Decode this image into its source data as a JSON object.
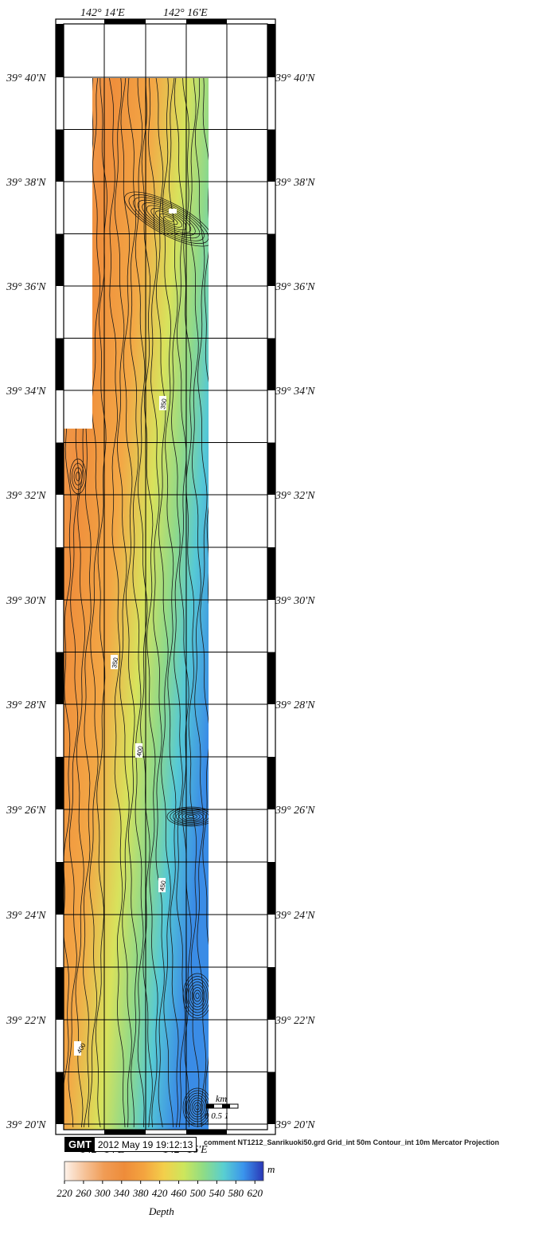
{
  "map": {
    "top_lon_labels": [
      "142° 14'E",
      "142° 16'E"
    ],
    "bottom_lon_labels": [
      "142° 14'E",
      "142° 16'E"
    ],
    "lat_labels": [
      "39° 40'N",
      "39° 38'N",
      "39° 36'N",
      "39° 34'N",
      "39° 32'N",
      "39° 30'N",
      "39° 28'N",
      "39° 26'N",
      "39° 24'N",
      "39° 22'N",
      "39° 20'N"
    ],
    "contour_labels": [
      "350",
      "350",
      "400",
      "450",
      "400"
    ]
  },
  "scale_bar": {
    "unit": "km",
    "ticks": "0 0.5 1"
  },
  "stamp": {
    "logo": "GMT",
    "date": "2012 May 19 19:12:13",
    "comment": "comment NT1212_Sanrikuoki50.grd Grid_int 50m Contour_int 10m  Mercator Projection"
  },
  "colorbar": {
    "unit": "m",
    "label": "Depth",
    "ticks": [
      "220",
      "260",
      "300",
      "340",
      "380",
      "420",
      "460",
      "500",
      "540",
      "580",
      "620"
    ],
    "colors": [
      "#fbe9dd",
      "#f7c49a",
      "#f19a4f",
      "#ee8d3a",
      "#f5a640",
      "#f5cc4a",
      "#dfe65a",
      "#9adc7d",
      "#5fd0c6",
      "#3fa6ee",
      "#2d6fdc",
      "#2a35b5"
    ]
  }
}
